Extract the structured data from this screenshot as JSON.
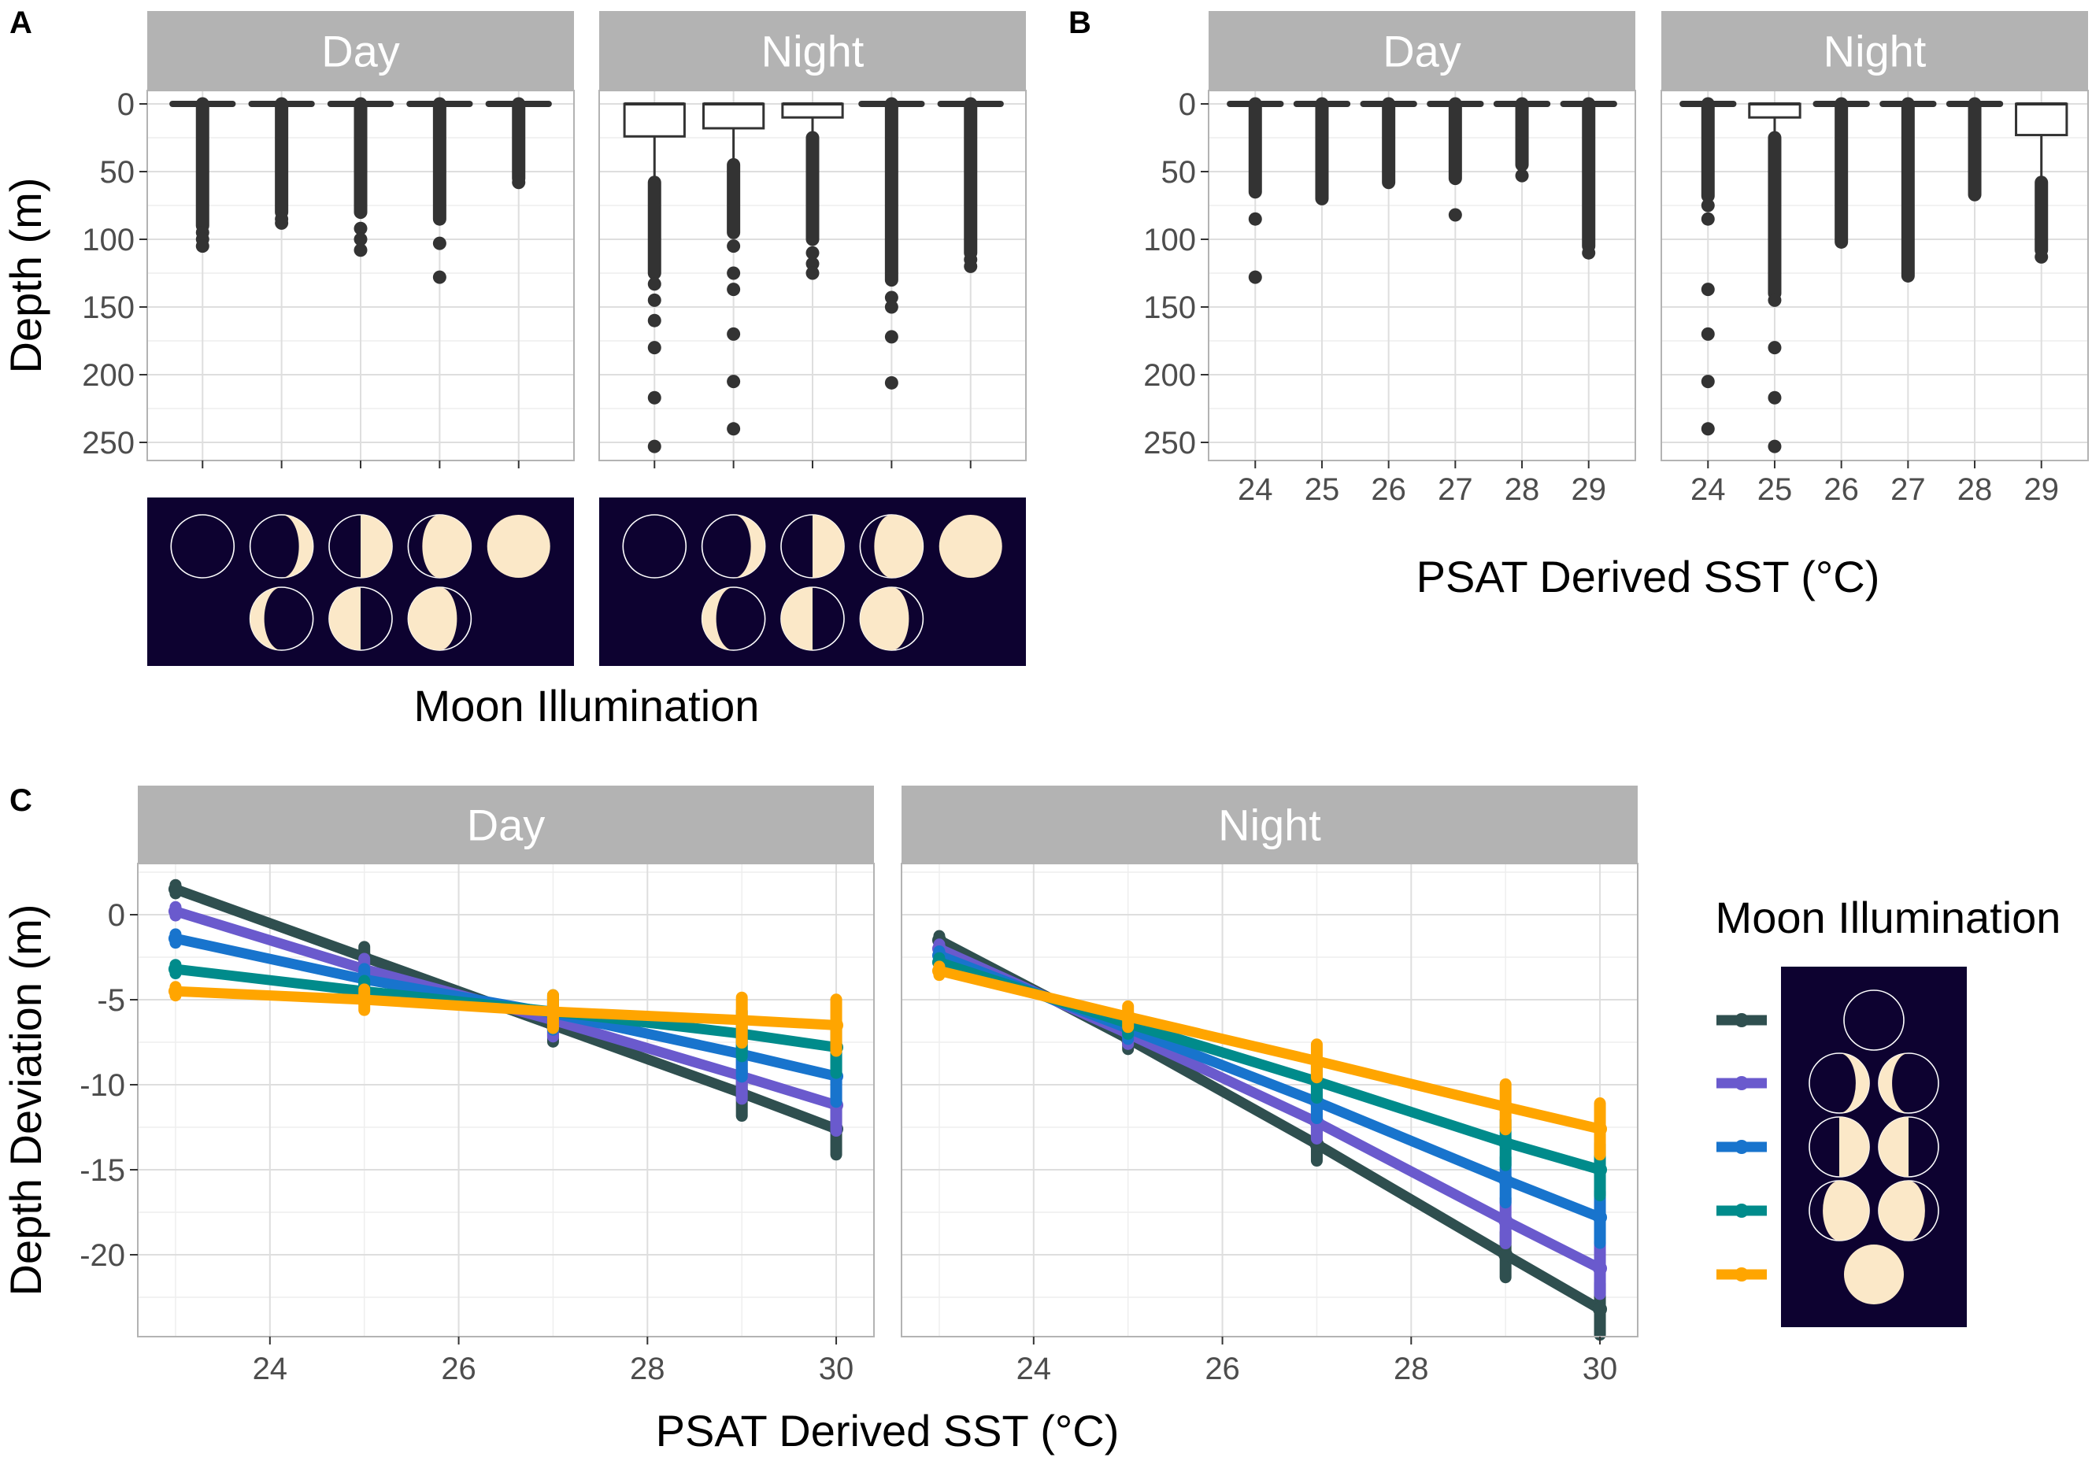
{
  "colors": {
    "strip_bg": "#b3b3b3",
    "grid_major": "#dedede",
    "grid_minor": "#eeeeee",
    "frame": "#b3b3b3",
    "box": "#333333",
    "moon_bg": "#0d0230",
    "moon_light": "#fbe8c8"
  },
  "moon_icons": [
    "new-moon-icon",
    "waxing-crescent-moon-icon",
    "first-quarter-moon-icon",
    "waxing-gibbous-moon-icon",
    "full-moon-icon",
    "waning-crescent-moon-icon",
    "last-quarter-moon-icon",
    "waning-gibbous-moon-icon"
  ],
  "chart_data": [
    {
      "id": "A",
      "label": "A",
      "type": "boxplot",
      "facets": [
        "Day",
        "Night"
      ],
      "xlabel": "Moon Illumination",
      "ylabel": "Depth (m)",
      "ylim": [
        0,
        265
      ],
      "y_reversed": true,
      "y_ticks": [
        0,
        50,
        100,
        150,
        200,
        250
      ],
      "categories": [
        "1",
        "2",
        "3",
        "4",
        "5"
      ],
      "category_legend": "moon phase icons (new, crescent, quarter, gibbous, full)",
      "boxes": {
        "Day": [
          {
            "q1": 0,
            "median": 0,
            "q3": 0,
            "whisker_max": 0,
            "outlier_dense_to": 90,
            "outliers": [
              95,
              100,
              105
            ]
          },
          {
            "q1": 0,
            "median": 0,
            "q3": 0,
            "whisker_max": 0,
            "outlier_dense_to": 80,
            "outliers": [
              85,
              88
            ]
          },
          {
            "q1": 0,
            "median": 0,
            "q3": 0,
            "whisker_max": 0,
            "outlier_dense_to": 80,
            "outliers": [
              92,
              100,
              108
            ]
          },
          {
            "q1": 0,
            "median": 0,
            "q3": 0,
            "whisker_max": 0,
            "outlier_dense_to": 85,
            "outliers": [
              103,
              128
            ]
          },
          {
            "q1": 0,
            "median": 0,
            "q3": 0,
            "whisker_max": 0,
            "outlier_dense_to": 55,
            "outliers": [
              58
            ]
          }
        ],
        "Night": [
          {
            "q1": 0,
            "median": 0,
            "q3": 24,
            "whisker_max": 58,
            "outlier_dense_to": 125,
            "outliers": [
              133,
              145,
              160,
              180,
              217,
              253
            ]
          },
          {
            "q1": 0,
            "median": 0,
            "q3": 18,
            "whisker_max": 45,
            "outlier_dense_to": 95,
            "outliers": [
              105,
              125,
              137,
              170,
              205,
              240
            ]
          },
          {
            "q1": 0,
            "median": 0,
            "q3": 10,
            "whisker_max": 25,
            "outlier_dense_to": 100,
            "outliers": [
              110,
              118,
              125
            ]
          },
          {
            "q1": 0,
            "median": 0,
            "q3": 0,
            "whisker_max": 0,
            "outlier_dense_to": 130,
            "outliers": [
              143,
              150,
              172,
              206
            ]
          },
          {
            "q1": 0,
            "median": 0,
            "q3": 0,
            "whisker_max": 0,
            "outlier_dense_to": 110,
            "outliers": [
              115,
              120
            ]
          }
        ]
      }
    },
    {
      "id": "B",
      "label": "B",
      "type": "boxplot",
      "facets": [
        "Day",
        "Night"
      ],
      "xlabel": "PSAT Derived SST (°C)",
      "ylabel": "",
      "ylim": [
        0,
        265
      ],
      "y_reversed": true,
      "y_ticks": [
        0,
        50,
        100,
        150,
        200,
        250
      ],
      "categories": [
        "24",
        "25",
        "26",
        "27",
        "28",
        "29"
      ],
      "boxes": {
        "Day": [
          {
            "q1": 0,
            "median": 0,
            "q3": 0,
            "whisker_max": 0,
            "outlier_dense_to": 65,
            "outliers": [
              85,
              128
            ]
          },
          {
            "q1": 0,
            "median": 0,
            "q3": 0,
            "whisker_max": 0,
            "outlier_dense_to": 70,
            "outliers": []
          },
          {
            "q1": 0,
            "median": 0,
            "q3": 0,
            "whisker_max": 0,
            "outlier_dense_to": 58,
            "outliers": []
          },
          {
            "q1": 0,
            "median": 0,
            "q3": 0,
            "whisker_max": 0,
            "outlier_dense_to": 55,
            "outliers": [
              82
            ]
          },
          {
            "q1": 0,
            "median": 0,
            "q3": 0,
            "whisker_max": 0,
            "outlier_dense_to": 45,
            "outliers": [
              53
            ]
          },
          {
            "q1": 0,
            "median": 0,
            "q3": 0,
            "whisker_max": 0,
            "outlier_dense_to": 105,
            "outliers": [
              110
            ]
          }
        ],
        "Night": [
          {
            "q1": 0,
            "median": 0,
            "q3": 0,
            "whisker_max": 0,
            "outlier_dense_to": 68,
            "outliers": [
              75,
              85,
              137,
              170,
              205,
              240
            ]
          },
          {
            "q1": 0,
            "median": 0,
            "q3": 10,
            "whisker_max": 25,
            "outlier_dense_to": 140,
            "outliers": [
              145,
              180,
              217,
              253
            ]
          },
          {
            "q1": 0,
            "median": 0,
            "q3": 0,
            "whisker_max": 0,
            "outlier_dense_to": 102,
            "outliers": []
          },
          {
            "q1": 0,
            "median": 0,
            "q3": 0,
            "whisker_max": 0,
            "outlier_dense_to": 127,
            "outliers": []
          },
          {
            "q1": 0,
            "median": 0,
            "q3": 0,
            "whisker_max": 0,
            "outlier_dense_to": 67,
            "outliers": []
          },
          {
            "q1": 0,
            "median": 0,
            "q3": 23,
            "whisker_max": 58,
            "outlier_dense_to": 108,
            "outliers": [
              113
            ]
          }
        ]
      }
    },
    {
      "id": "C",
      "label": "C",
      "type": "line",
      "facets": [
        "Day",
        "Night"
      ],
      "xlabel": "PSAT Derived SST (°C)",
      "ylabel": "Depth Deviation (m)",
      "xlim": [
        22.6,
        30.4
      ],
      "x_ticks": [
        24,
        26,
        28,
        30
      ],
      "ylim": [
        -25,
        3
      ],
      "y_ticks": [
        0,
        -5,
        -10,
        -15,
        -20
      ],
      "x": [
        23,
        25,
        27,
        29,
        30
      ],
      "legend_title": "Moon Illumination",
      "series_day": [
        {
          "name": "new",
          "color": "#2f4f4f",
          "values": [
            1.5,
            -2.5,
            -6.5,
            -10.5,
            -12.6
          ]
        },
        {
          "name": "crescent",
          "color": "#6a5acd",
          "values": [
            0.2,
            -3.2,
            -6.2,
            -9.5,
            -11.2
          ]
        },
        {
          "name": "quarter",
          "color": "#1874cd",
          "values": [
            -1.4,
            -3.8,
            -5.8,
            -8.2,
            -9.5
          ]
        },
        {
          "name": "gibbous",
          "color": "#008b8b",
          "values": [
            -3.2,
            -4.5,
            -5.7,
            -7.0,
            -7.8
          ]
        },
        {
          "name": "full",
          "color": "#ffa500",
          "values": [
            -4.5,
            -5.0,
            -5.7,
            -6.2,
            -6.5
          ]
        }
      ],
      "series_night": [
        {
          "name": "new",
          "color": "#2f4f4f",
          "values": [
            -1.5,
            -7.3,
            -13.5,
            -20.0,
            -23.2
          ]
        },
        {
          "name": "crescent",
          "color": "#6a5acd",
          "values": [
            -2.0,
            -7.0,
            -12.2,
            -18.0,
            -20.8
          ]
        },
        {
          "name": "quarter",
          "color": "#1874cd",
          "values": [
            -2.4,
            -6.7,
            -11.0,
            -15.6,
            -17.8
          ]
        },
        {
          "name": "gibbous",
          "color": "#008b8b",
          "values": [
            -2.8,
            -6.4,
            -9.8,
            -13.4,
            -15.0
          ]
        },
        {
          "name": "full",
          "color": "#ffa500",
          "values": [
            -3.3,
            -6.0,
            -8.6,
            -11.3,
            -12.6
          ]
        }
      ]
    }
  ]
}
